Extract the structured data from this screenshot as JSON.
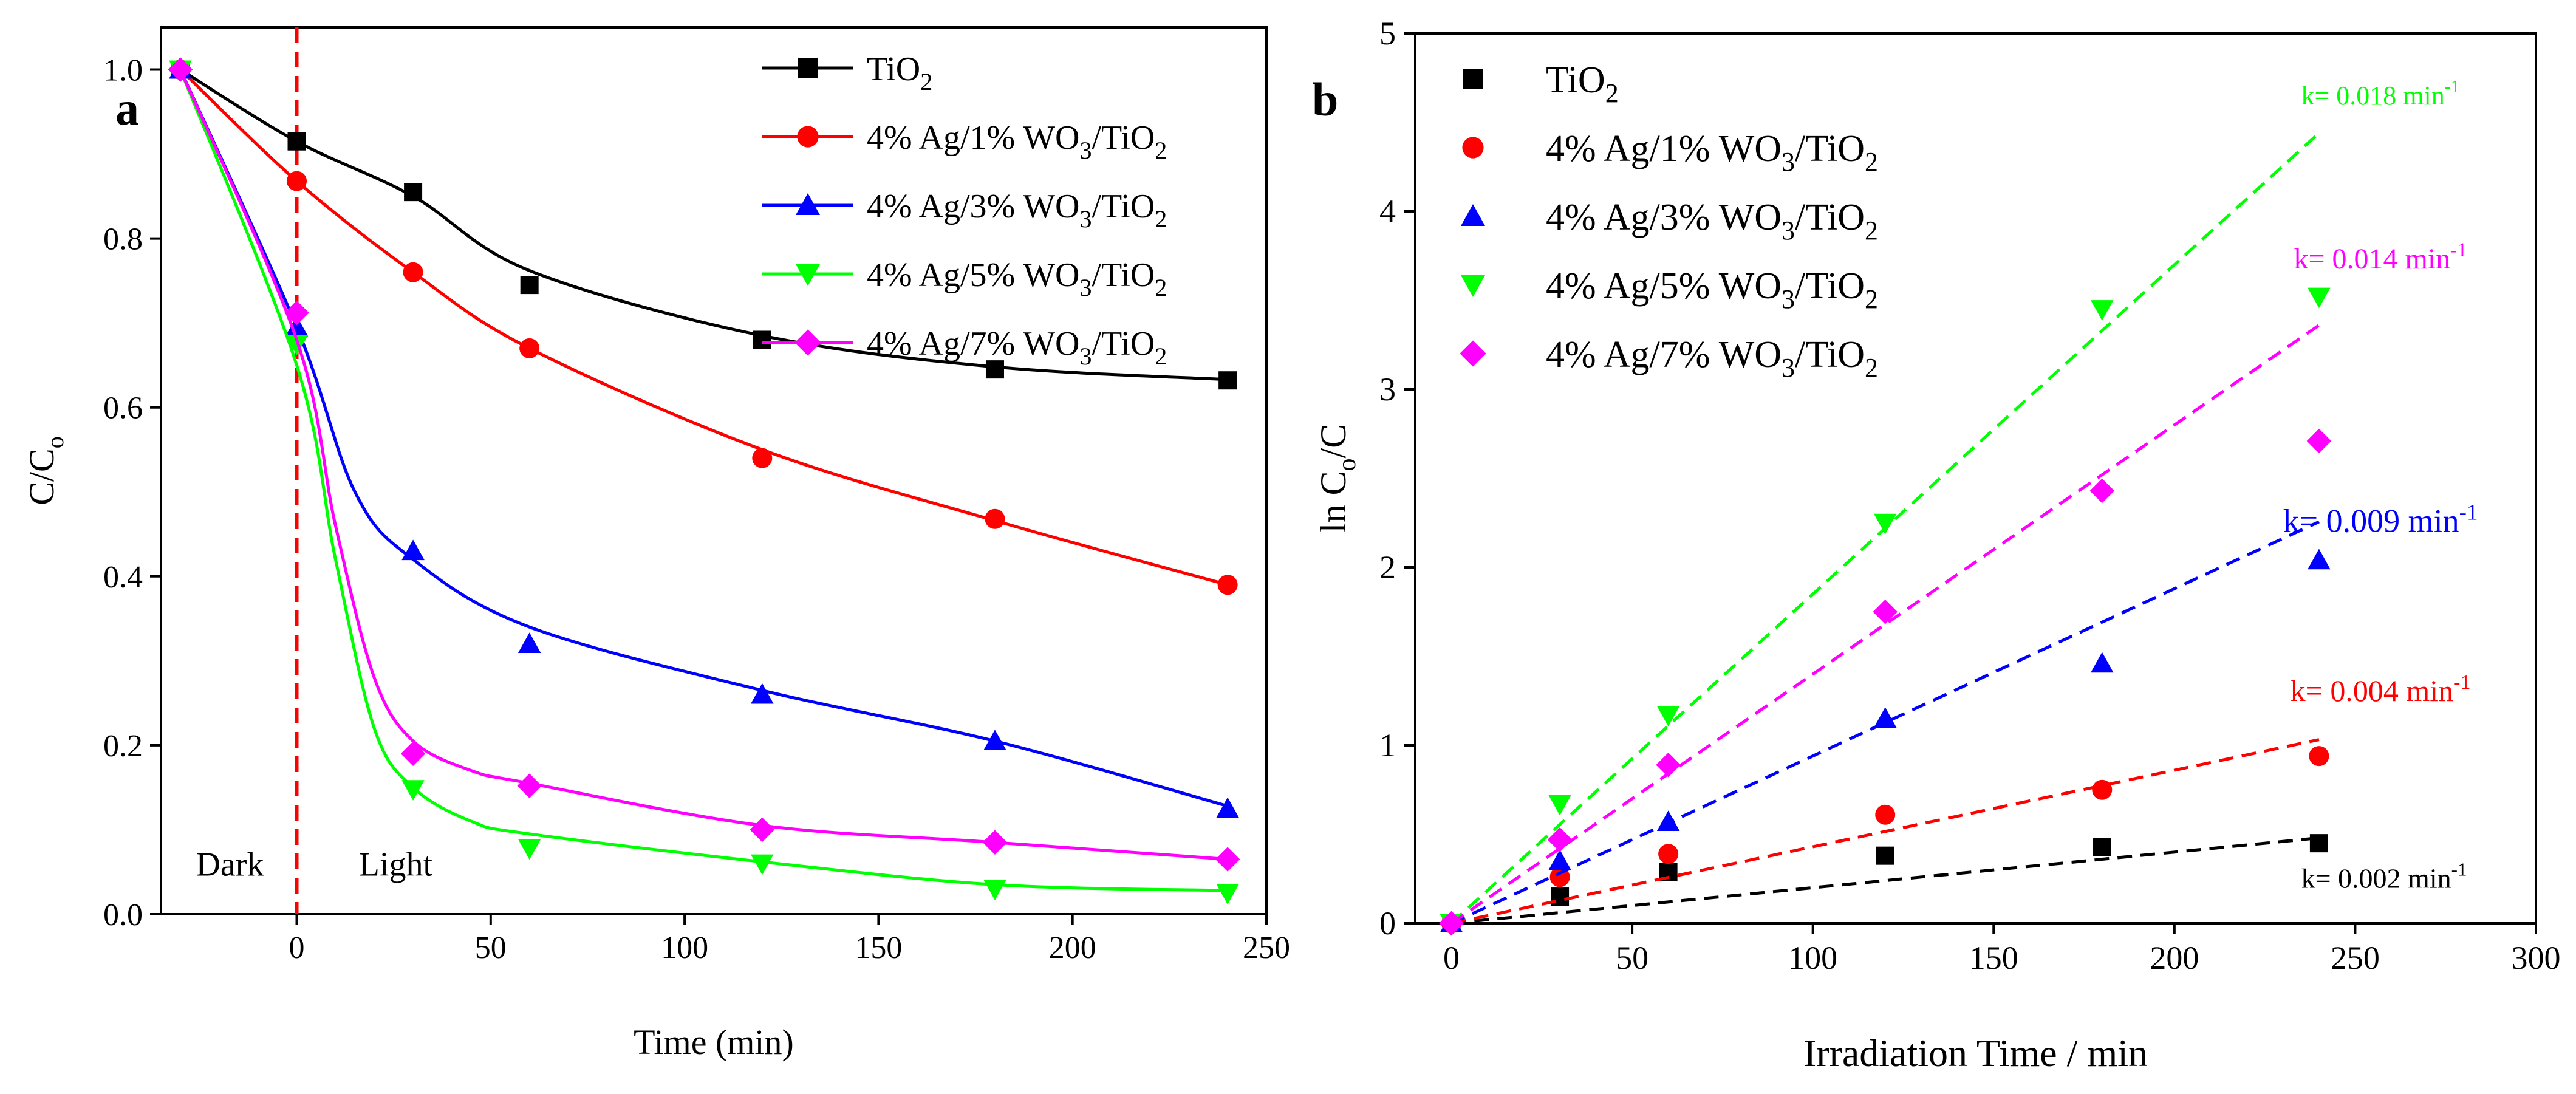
{
  "panels": [
    {
      "id": "a",
      "panel_label": "a",
      "chart_data": {
        "type": "line",
        "title": "",
        "xlabel": "Time (min)",
        "ylabel_main": "C/C",
        "ylabel_sub": "o",
        "xlim": [
          -35,
          250
        ],
        "ylim": [
          0,
          1.05
        ],
        "xticks": [
          0,
          50,
          100,
          150,
          200,
          250
        ],
        "yticks": [
          0.0,
          0.2,
          0.4,
          0.6,
          0.8,
          1.0
        ],
        "xtick_labels": [
          "0",
          "50",
          "100",
          "150",
          "200",
          "250"
        ],
        "ytick_labels": [
          "0.0",
          "0.2",
          "0.4",
          "0.6",
          "0.8",
          "1.0"
        ],
        "x": [
          -30,
          0,
          30,
          60,
          120,
          180,
          240
        ],
        "series": [
          {
            "name_main": "TiO",
            "name_sub": "2",
            "name_tail": "",
            "color": "#000000",
            "marker": "square",
            "values": [
              1.0,
              0.915,
              0.855,
              0.745,
              0.68,
              0.645,
              0.632
            ],
            "curve": [
              [
                -30,
                1.0
              ],
              [
                0,
                0.915
              ],
              [
                30,
                0.85
              ],
              [
                60,
                0.762
              ],
              [
                120,
                0.685
              ],
              [
                180,
                0.648
              ],
              [
                240,
                0.633
              ]
            ]
          },
          {
            "name_main": "4% Ag/1% WO",
            "name_sub": "3",
            "name_tail": "/TiO",
            "name_sub2": "2",
            "color": "#ff0000",
            "marker": "circle",
            "values": [
              1.0,
              0.868,
              0.76,
              0.67,
              0.54,
              0.468,
              0.39
            ],
            "curve": [
              [
                -30,
                1.0
              ],
              [
                0,
                0.868
              ],
              [
                30,
                0.76
              ],
              [
                60,
                0.67
              ],
              [
                120,
                0.55
              ],
              [
                180,
                0.466
              ],
              [
                240,
                0.39
              ]
            ]
          },
          {
            "name_main": "4% Ag/3% WO",
            "name_sub": "3",
            "name_tail": "/TiO",
            "name_sub2": "2",
            "color": "#0000ff",
            "marker": "triangle-up",
            "values": [
              1.0,
              0.695,
              0.43,
              0.32,
              0.26,
              0.205,
              0.125
            ],
            "curve": [
              [
                -30,
                1.0
              ],
              [
                0,
                0.695
              ],
              [
                15,
                0.5
              ],
              [
                30,
                0.42
              ],
              [
                60,
                0.34
              ],
              [
                120,
                0.265
              ],
              [
                180,
                0.205
              ],
              [
                240,
                0.128
              ]
            ]
          },
          {
            "name_main": "4% Ag/5% WO",
            "name_sub": "3",
            "name_tail": "/TiO",
            "name_sub2": "2",
            "color": "#00ff00",
            "marker": "triangle-down",
            "values": [
              1.0,
              0.675,
              0.148,
              0.078,
              0.06,
              0.03,
              0.025
            ],
            "curve": [
              [
                -30,
                1.0
              ],
              [
                0,
                0.65
              ],
              [
                10,
                0.42
              ],
              [
                20,
                0.22
              ],
              [
                30,
                0.15
              ],
              [
                45,
                0.11
              ],
              [
                60,
                0.095
              ],
              [
                120,
                0.062
              ],
              [
                180,
                0.035
              ],
              [
                240,
                0.028
              ]
            ]
          },
          {
            "name_main": "4% Ag/7% WO",
            "name_sub": "3",
            "name_tail": "/TiO",
            "name_sub2": "2",
            "color": "#ff00ff",
            "marker": "diamond",
            "values": [
              1.0,
              0.712,
              0.19,
              0.152,
              0.1,
              0.085,
              0.065
            ],
            "curve": [
              [
                -30,
                1.0
              ],
              [
                0,
                0.68
              ],
              [
                10,
                0.46
              ],
              [
                20,
                0.28
              ],
              [
                30,
                0.205
              ],
              [
                45,
                0.17
              ],
              [
                60,
                0.155
              ],
              [
                120,
                0.105
              ],
              [
                180,
                0.085
              ],
              [
                240,
                0.065
              ]
            ]
          }
        ],
        "vline": {
          "x": 0,
          "color": "#ff0000"
        },
        "annotations": [
          {
            "text": "Dark",
            "x": -26,
            "y": 0.06
          },
          {
            "text": "Light",
            "x": 16,
            "y": 0.06
          }
        ],
        "legend_position": "top-right"
      }
    },
    {
      "id": "b",
      "panel_label": "b",
      "chart_data": {
        "type": "scatter",
        "title": "",
        "xlabel": "Irradiation Time / min",
        "ylabel_main": "ln C",
        "ylabel_sub": "o",
        "ylabel_tail": "/C",
        "xlim": [
          -10,
          300
        ],
        "ylim": [
          0,
          5
        ],
        "xticks": [
          0,
          50,
          100,
          150,
          200,
          250,
          300
        ],
        "yticks": [
          0,
          1,
          2,
          3,
          4,
          5
        ],
        "xtick_labels": [
          "0",
          "50",
          "100",
          "150",
          "200",
          "250",
          "300"
        ],
        "ytick_labels": [
          "0",
          "1",
          "2",
          "3",
          "4",
          "5"
        ],
        "x": [
          0,
          30,
          60,
          120,
          180,
          240
        ],
        "series": [
          {
            "name_main": "TiO",
            "name_sub": "2",
            "name_tail": "",
            "color": "#000000",
            "marker": "square",
            "values": [
              0.0,
              0.15,
              0.29,
              0.38,
              0.43,
              0.45
            ],
            "k": 0.002,
            "k_label": "k= 0.002 min",
            "k_sup": "-1",
            "label_at": [
              258,
              0.2
            ],
            "label_size": 46
          },
          {
            "name_main": "4% Ag/1% WO",
            "name_sub": "3",
            "name_tail": "/TiO",
            "name_sub2": "2",
            "color": "#ff0000",
            "marker": "circle",
            "values": [
              0.0,
              0.26,
              0.39,
              0.61,
              0.75,
              0.94
            ],
            "k": 0.0043,
            "k_label": "k= 0.004 min",
            "k_sup": "-1",
            "label_at": [
              257,
              1.25
            ],
            "label_size": 50
          },
          {
            "name_main": "4% Ag/3% WO",
            "name_sub": "3",
            "name_tail": "/TiO",
            "name_sub2": "2",
            "color": "#0000ff",
            "marker": "triangle-up",
            "values": [
              0.0,
              0.35,
              0.57,
              1.15,
              1.46,
              2.04
            ],
            "k": 0.0094,
            "k_label": "k= 0.009 min",
            "k_sup": "-1",
            "label_at": [
              257,
              2.2
            ],
            "label_size": 54
          },
          {
            "name_main": "4% Ag/5% WO",
            "name_sub": "3",
            "name_tail": "/TiO",
            "name_sub2": "2",
            "color": "#00ff00",
            "marker": "triangle-down",
            "values": [
              0.0,
              0.67,
              1.17,
              2.25,
              3.45,
              3.52
            ],
            "k": 0.0185,
            "k_label": "k= 0.018 min",
            "k_sup": "-1",
            "label_at": [
              257,
              4.6
            ],
            "label_size": 44
          },
          {
            "name_main": "4% Ag/7% WO",
            "name_sub": "3",
            "name_tail": "/TiO",
            "name_sub2": "2",
            "color": "#ff00ff",
            "marker": "diamond",
            "values": [
              0.0,
              0.47,
              0.89,
              1.75,
              2.43,
              2.71
            ],
            "k": 0.014,
            "k_label": "k= 0.014 min",
            "k_sup": "-1",
            "label_at": [
              257,
              3.68
            ],
            "label_size": 48
          }
        ],
        "legend_position": "top-left"
      }
    }
  ]
}
